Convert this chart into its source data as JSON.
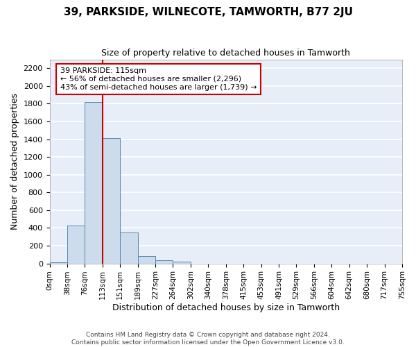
{
  "title": "39, PARKSIDE, WILNECOTE, TAMWORTH, B77 2JU",
  "subtitle": "Size of property relative to detached houses in Tamworth",
  "xlabel": "Distribution of detached houses by size in Tamworth",
  "ylabel": "Number of detached properties",
  "bar_color": "#ccdcec",
  "bar_edge_color": "#5588aa",
  "background_color": "#e8eef8",
  "grid_color": "white",
  "bin_labels": [
    "0sqm",
    "38sqm",
    "76sqm",
    "113sqm",
    "151sqm",
    "189sqm",
    "227sqm",
    "264sqm",
    "302sqm",
    "340sqm",
    "378sqm",
    "415sqm",
    "453sqm",
    "491sqm",
    "529sqm",
    "566sqm",
    "604sqm",
    "642sqm",
    "680sqm",
    "717sqm",
    "755sqm"
  ],
  "bar_values": [
    15,
    425,
    1820,
    1410,
    345,
    80,
    33,
    20,
    0,
    0,
    0,
    0,
    0,
    0,
    0,
    0,
    0,
    0,
    0,
    0
  ],
  "ylim": [
    0,
    2300
  ],
  "yticks": [
    0,
    200,
    400,
    600,
    800,
    1000,
    1200,
    1400,
    1600,
    1800,
    2000,
    2200
  ],
  "vline_x": 3.0,
  "vline_color": "#cc0000",
  "annotation_text": "39 PARKSIDE: 115sqm\n← 56% of detached houses are smaller (2,296)\n43% of semi-detached houses are larger (1,739) →",
  "annotation_box_facecolor": "white",
  "annotation_box_edgecolor": "#cc0000",
  "footer_line1": "Contains HM Land Registry data © Crown copyright and database right 2024.",
  "footer_line2": "Contains public sector information licensed under the Open Government Licence v3.0.",
  "title_fontsize": 11,
  "subtitle_fontsize": 9,
  "ylabel_fontsize": 9,
  "xlabel_fontsize": 9,
  "tick_fontsize": 8,
  "annot_fontsize": 8
}
